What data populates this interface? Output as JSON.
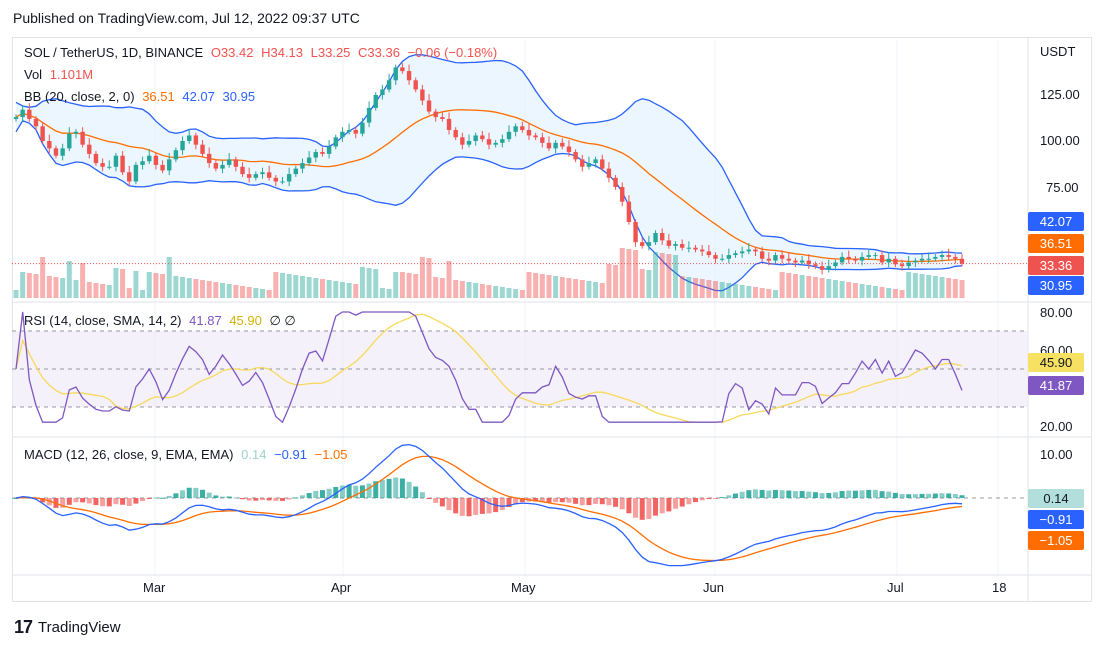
{
  "header": {
    "published": "Published on TradingView.com, Jul 12, 2022 09:37 UTC"
  },
  "footer": {
    "brand": "TradingView"
  },
  "legend": {
    "symbol": "SOL / TetherUS, 1D, BINANCE",
    "open": "O33.42",
    "high": "H34.13",
    "low": "L33.25",
    "close": "C33.36",
    "change": "−0.06 (−0.18%)",
    "vol_label": "Vol",
    "vol_value": "1.101M",
    "bb_label": "BB (20, close, 2, 0)",
    "bb_basis": "36.51",
    "bb_upper": "42.07",
    "bb_lower": "30.95",
    "rsi_label": "RSI (14, close, SMA, 14, 2)",
    "rsi_value": "41.87",
    "rsi_ma": "45.90",
    "rsi_extra": "∅  ∅",
    "macd_label": "MACD (12, 26, close, 9, EMA, EMA)",
    "macd_hist": "0.14",
    "macd_line": "−0.91",
    "macd_signal": "−1.05"
  },
  "price_axis": {
    "unit": "USDT",
    "ticks": [
      "125.00",
      "100.00",
      "75.00"
    ]
  },
  "rsi_axis": {
    "ticks": [
      "80.00",
      "60.00",
      "20.00"
    ]
  },
  "macd_axis": {
    "ticks": [
      "10.00"
    ]
  },
  "badges": {
    "bb_upper": "42.07",
    "bb_basis": "36.51",
    "last_price": "33.36",
    "bb_lower": "30.95",
    "rsi_ma": "45.90",
    "rsi": "41.87",
    "macd_hist": "0.14",
    "macd_line": "−0.91",
    "macd_signal": "−1.05"
  },
  "time_axis": {
    "labels": [
      "Mar",
      "Apr",
      "May",
      "Jun",
      "Jul",
      "18"
    ]
  },
  "colors": {
    "up": "#26a69a",
    "down": "#ef5350",
    "bb_band": "#2962ff",
    "bb_basis": "#ff6d00",
    "bb_fill": "#e3f2fd",
    "rsi": "#7e57c2",
    "rsi_ma": "#f7d95b",
    "rsi_fill": "#ede7f6",
    "macd": "#2962ff",
    "signal": "#ff6d00"
  },
  "chart_data": {
    "type": "candlestick",
    "symbol": "SOL / TetherUS",
    "interval": "1D",
    "y_unit": "USDT",
    "price_range": [
      30,
      150
    ],
    "closes": [
      113,
      117,
      112,
      108,
      100,
      96,
      92,
      96,
      104,
      105,
      98,
      93,
      88,
      86,
      86,
      92,
      83,
      78,
      87,
      89,
      92,
      87,
      84,
      90,
      95,
      100,
      103,
      98,
      93,
      88,
      85,
      87,
      90,
      86,
      82,
      80,
      82,
      83,
      80,
      78,
      78,
      82,
      85,
      88,
      91,
      94,
      93,
      97,
      102,
      105,
      106,
      104,
      110,
      118,
      125,
      128,
      133,
      140,
      138,
      133,
      128,
      122,
      116,
      113,
      112,
      106,
      102,
      98,
      100,
      103,
      101,
      98,
      99,
      101,
      105,
      108,
      106,
      103,
      102,
      99,
      96,
      99,
      97,
      94,
      90,
      86,
      88,
      90,
      85,
      80,
      75,
      67,
      56,
      45,
      43,
      45,
      50,
      46,
      43,
      44,
      42,
      42,
      41,
      40,
      38,
      36,
      36,
      38,
      39,
      40,
      41,
      40,
      36,
      35,
      38,
      36,
      35,
      34,
      35,
      33,
      32,
      30,
      32,
      34,
      37,
      36,
      35,
      37,
      38,
      38,
      34,
      36,
      33,
      32,
      34,
      35,
      36,
      36,
      37,
      38,
      37,
      36,
      33.36
    ],
    "bb_basis_current": 36.51,
    "bb_upper_current": 42.07,
    "bb_lower_current": 30.95,
    "rsi_current": 41.87,
    "rsi_ma_current": 45.9,
    "macd_line_current": -0.91,
    "macd_signal_current": -1.05,
    "macd_hist_current": 0.14,
    "x_labels": [
      "Mar",
      "Apr",
      "May",
      "Jun",
      "Jul",
      "18"
    ]
  }
}
